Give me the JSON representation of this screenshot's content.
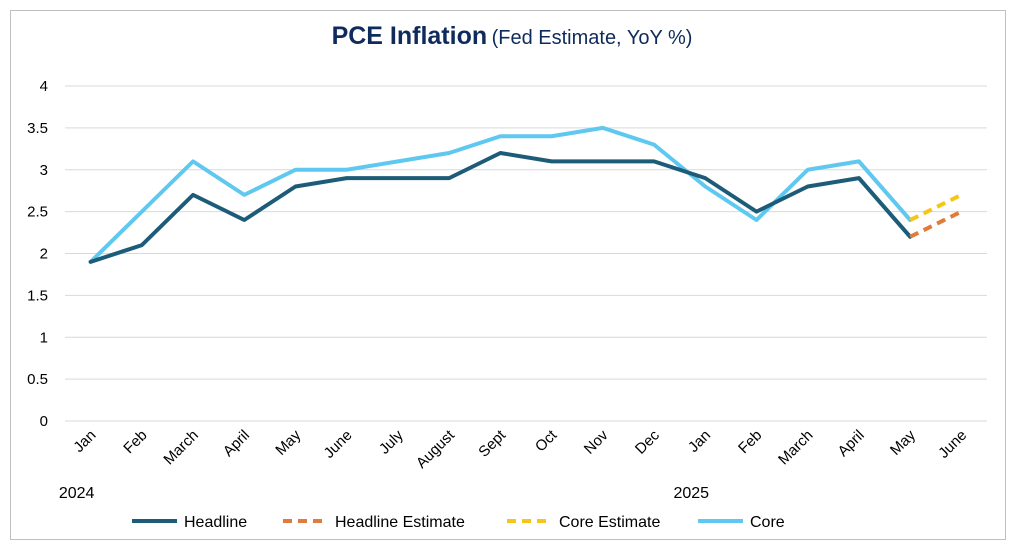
{
  "chart_data": {
    "type": "line",
    "title": "PCE Inflation",
    "subtitle": "(Fed Estimate, YoY %)",
    "categories": [
      "Jan",
      "Feb",
      "March",
      "April",
      "May",
      "June",
      "July",
      "August",
      "Sept",
      "Oct",
      "Nov",
      "Dec",
      "Jan",
      "Feb",
      "March",
      "April",
      "May",
      "June"
    ],
    "year_labels": [
      {
        "label": "2024",
        "category_index": 0
      },
      {
        "label": "2025",
        "category_index": 12
      }
    ],
    "ylim": [
      0,
      4
    ],
    "yticks": [
      "0",
      "0.5",
      "1",
      "1.5",
      "2",
      "2.5",
      "3",
      "3.5",
      "4"
    ],
    "ytick_values": [
      0,
      0.5,
      1,
      1.5,
      2,
      2.5,
      3,
      3.5,
      4
    ],
    "grid": true,
    "legend_position": "bottom",
    "series": [
      {
        "name": "Headline",
        "color": "#1d5c78",
        "style": "solid",
        "values": [
          1.9,
          2.1,
          2.7,
          2.4,
          2.8,
          2.9,
          2.9,
          2.9,
          3.2,
          3.1,
          3.1,
          3.1,
          2.9,
          2.5,
          2.8,
          2.9,
          2.2,
          null
        ]
      },
      {
        "name": "Headline Estimate",
        "color": "#e07b39",
        "style": "dashed",
        "values": [
          null,
          null,
          null,
          null,
          null,
          null,
          null,
          null,
          null,
          null,
          null,
          null,
          null,
          null,
          null,
          null,
          2.2,
          2.5
        ]
      },
      {
        "name": "Core Estimate",
        "color": "#f5c518",
        "style": "dashed",
        "values": [
          null,
          null,
          null,
          null,
          null,
          null,
          null,
          null,
          null,
          null,
          null,
          null,
          null,
          null,
          null,
          null,
          2.4,
          2.7
        ]
      },
      {
        "name": "Core",
        "color": "#5fc8f0",
        "style": "solid",
        "values": [
          1.9,
          2.5,
          3.1,
          2.7,
          3.0,
          3.0,
          3.1,
          3.2,
          3.4,
          3.4,
          3.5,
          3.3,
          2.8,
          2.4,
          3.0,
          3.1,
          2.4,
          null
        ]
      }
    ],
    "draw_order": [
      3,
      0,
      1,
      2
    ]
  }
}
